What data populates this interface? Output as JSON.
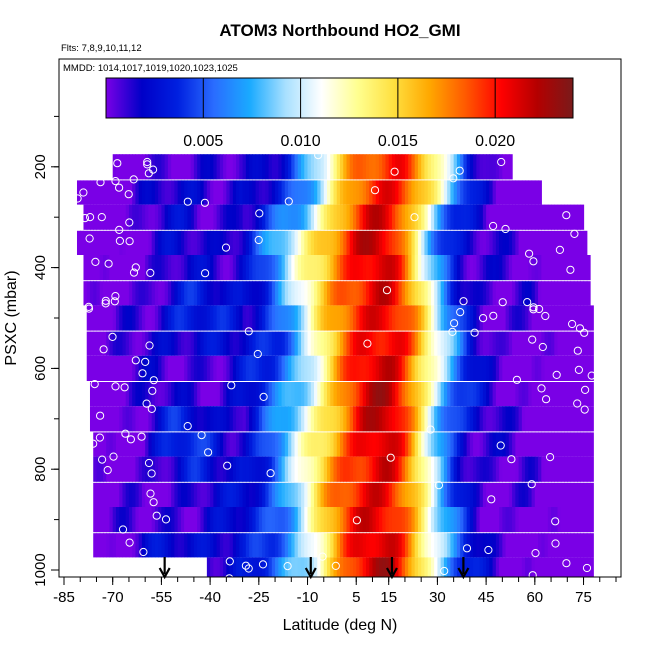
{
  "chart_data": {
    "type": "heatmap",
    "title": "ATOM3 Northbound HO2_GMI",
    "flights_label": "Flts: 7,8,9,10,11,12",
    "dates_label": "MMDD: 1014,1017,1019,1020,1023,1025",
    "xlabel": "Latitude (deg N)",
    "ylabel": "PSXC (mbar)",
    "xlim": [
      -85,
      85
    ],
    "ylim": [
      1000,
      0
    ],
    "x_ticks": [
      "-85",
      "-70",
      "-55",
      "-40",
      "-25",
      "-10",
      "5",
      "15",
      "30",
      "45",
      "60",
      "75"
    ],
    "y_ticks": [
      "200",
      "400",
      "600",
      "800",
      "1000"
    ],
    "colorbar": {
      "range": [
        0,
        0.024
      ],
      "ticks": [
        "0.005",
        "0.010",
        "0.015",
        "0.020"
      ],
      "colors": [
        "#7a00e6",
        "#0000c8",
        "#0020e0",
        "#2a6cff",
        "#1aaaff",
        "#a8e0ff",
        "#ffffff",
        "#ffff90",
        "#ffe040",
        "#ffa800",
        "#ff5a00",
        "#ff0000",
        "#b40000",
        "#7a1a1a"
      ]
    },
    "bands": [
      {
        "p": 200,
        "lat_min": -70,
        "lat_max": 53
      },
      {
        "p": 250,
        "lat_min": -81,
        "lat_max": 62
      },
      {
        "p": 300,
        "lat_min": -79,
        "lat_max": 75
      },
      {
        "p": 350,
        "lat_min": -81,
        "lat_max": 76
      },
      {
        "p": 400,
        "lat_min": -79,
        "lat_max": 77
      },
      {
        "p": 450,
        "lat_min": -79,
        "lat_max": 77
      },
      {
        "p": 500,
        "lat_min": -78,
        "lat_max": 78
      },
      {
        "p": 550,
        "lat_min": -78,
        "lat_max": 78
      },
      {
        "p": 600,
        "lat_min": -78,
        "lat_max": 78
      },
      {
        "p": 650,
        "lat_min": -77,
        "lat_max": 78
      },
      {
        "p": 700,
        "lat_min": -77,
        "lat_max": 78
      },
      {
        "p": 750,
        "lat_min": -76,
        "lat_max": 78
      },
      {
        "p": 800,
        "lat_min": -76,
        "lat_max": 78
      },
      {
        "p": 850,
        "lat_min": -76,
        "lat_max": 78
      },
      {
        "p": 900,
        "lat_min": -76,
        "lat_max": 78
      },
      {
        "p": 950,
        "lat_min": -76,
        "lat_max": 78
      },
      {
        "p": 1000,
        "lat_min": -41,
        "lat_max": 78
      }
    ],
    "peak_band": [
      {
        "p": 250,
        "lat": 17
      },
      {
        "p": 350,
        "lat": 10
      },
      {
        "p": 450,
        "lat": 12
      },
      {
        "p": 550,
        "lat": 15
      },
      {
        "p": 650,
        "lat": 14
      },
      {
        "p": 750,
        "lat": 12
      },
      {
        "p": 850,
        "lat": 12
      },
      {
        "p": 950,
        "lat": 14
      }
    ],
    "arrows_lat": [
      -54,
      -9,
      16,
      38
    ]
  }
}
